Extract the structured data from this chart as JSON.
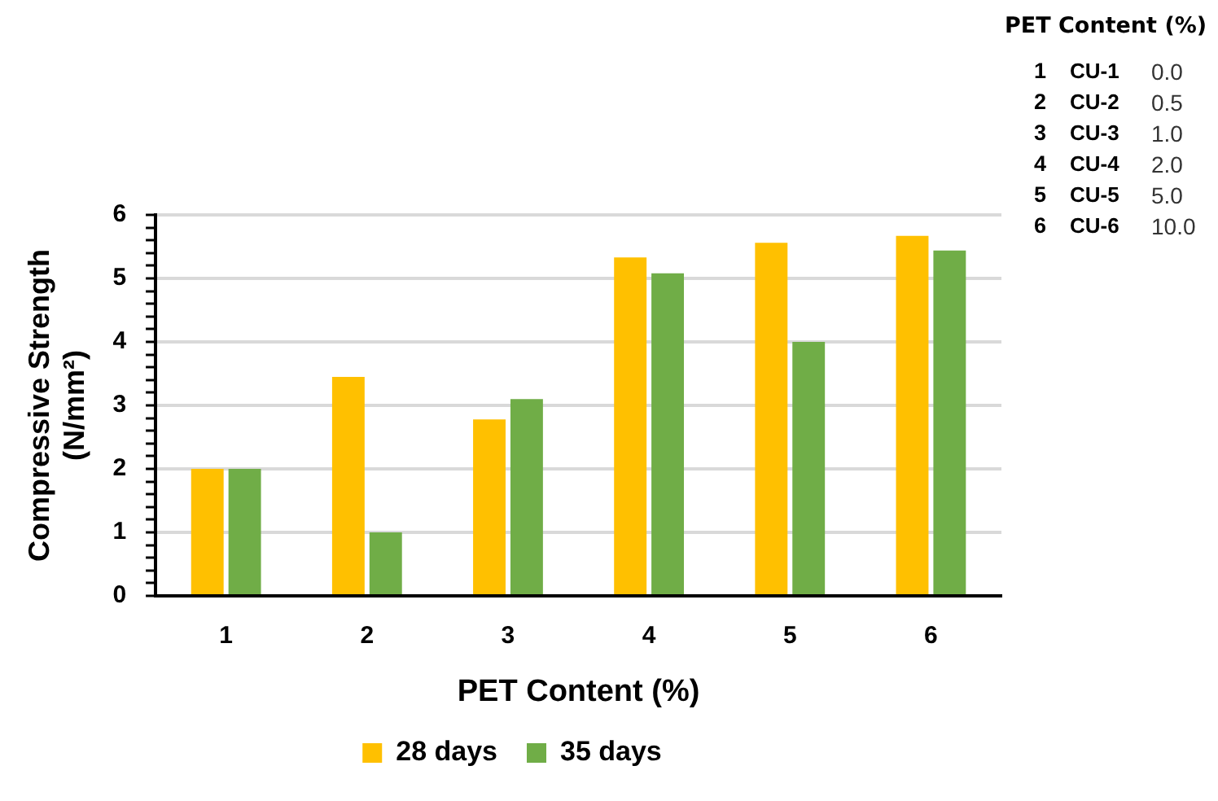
{
  "chart_data": {
    "type": "bar",
    "xlabel": "PET Content (%)",
    "ylabel": "Compressive Strength (N/mm²)",
    "categories": [
      "1",
      "2",
      "3",
      "4",
      "5",
      "6"
    ],
    "series": [
      {
        "name": "28 days",
        "color": "#ffc000",
        "values": [
          2.0,
          3.45,
          2.78,
          5.33,
          5.56,
          5.67
        ]
      },
      {
        "name": "35 days",
        "color": "#70ad47",
        "values": [
          2.0,
          1.0,
          3.1,
          5.08,
          4.0,
          5.44
        ]
      }
    ],
    "ylim": [
      0,
      6
    ],
    "yticks": [
      0,
      {
        "value": 0.2,
        "label": null
      },
      {
        "value": 0.4,
        "label": null
      },
      {
        "value": 0.6,
        "label": null
      },
      {
        "value": 0.8,
        "label": null
      },
      1,
      {
        "value": 1.2,
        "label": null
      },
      {
        "value": 1.4,
        "label": null
      },
      {
        "value": 1.6,
        "label": null
      },
      {
        "value": 1.8,
        "label": null
      },
      2,
      {
        "value": 2.2,
        "label": null
      },
      {
        "value": 2.4,
        "label": null
      },
      {
        "value": 2.6,
        "label": null
      },
      {
        "value": 2.8,
        "label": null
      },
      3,
      {
        "value": 3.2,
        "label": null
      },
      {
        "value": 3.4,
        "label": null
      },
      {
        "value": 3.6,
        "label": null
      },
      {
        "value": 3.8,
        "label": null
      },
      4,
      {
        "value": 4.2,
        "label": null
      },
      {
        "value": 4.4,
        "label": null
      },
      {
        "value": 4.6,
        "label": null
      },
      {
        "value": 4.8,
        "label": null
      },
      5,
      {
        "value": 5.2,
        "label": null
      },
      {
        "value": 5.4,
        "label": null
      },
      {
        "value": 5.6,
        "label": null
      },
      {
        "value": 5.8,
        "label": null
      },
      6
    ],
    "grid": "y",
    "legend": "bottom",
    "annotations": [
      "PET Content (%)",
      "1",
      "CU-1",
      "0.0",
      "2",
      "CU-2",
      "0.5",
      "3",
      "CU-3",
      "1.0",
      "4",
      "CU-4",
      "2.0",
      "5",
      "CU-5",
      "5.0",
      "6",
      "CU-6",
      "10.0"
    ]
  }
}
